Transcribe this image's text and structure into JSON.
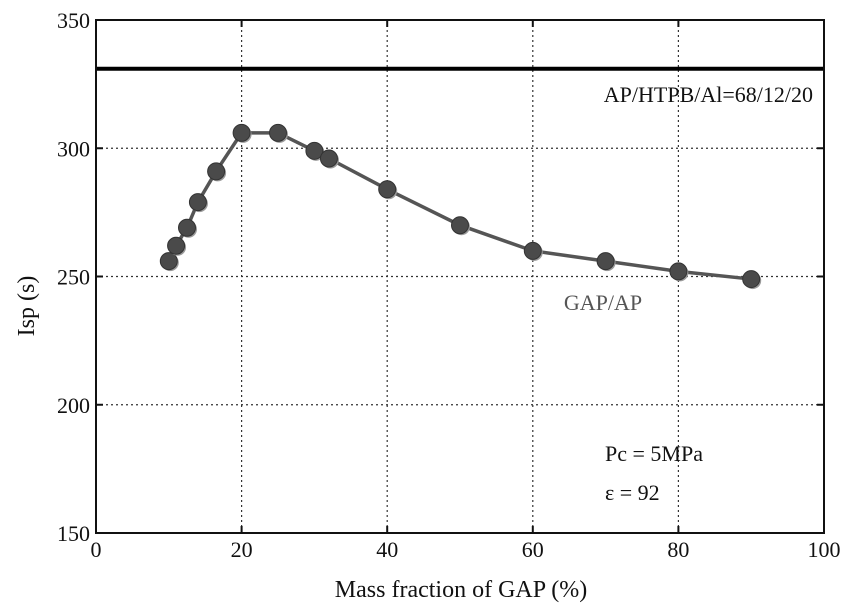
{
  "chart_data": {
    "type": "line",
    "title": "",
    "xlabel": "Mass fraction of GAP (%)",
    "ylabel": "Isp (s)",
    "xlim": [
      0,
      100
    ],
    "ylim": [
      150,
      350
    ],
    "x_ticks": [
      0,
      20,
      40,
      60,
      80,
      100
    ],
    "y_ticks": [
      150,
      200,
      250,
      300,
      350
    ],
    "x_tick_labels": [
      "0",
      "20",
      "40",
      "60",
      "80",
      "100"
    ],
    "y_tick_labels": [
      "150",
      "200",
      "250",
      "300",
      "350"
    ],
    "grid": true,
    "series": [
      {
        "name": "GAP/AP",
        "x": [
          10,
          11,
          12.5,
          14,
          16.5,
          20,
          25,
          30,
          32,
          40,
          50,
          60,
          70,
          80,
          90
        ],
        "y": [
          256,
          262,
          269,
          279,
          291,
          306,
          306,
          299,
          296,
          284,
          270,
          260,
          256,
          252,
          249
        ],
        "color": "#555555",
        "marker": "circle"
      }
    ],
    "reference_lines": [
      {
        "name": "AP/HTPB/Al=68/12/20",
        "y": 331,
        "color": "#000000"
      }
    ],
    "annotations": {
      "reference_label": "AP/HTPB/Al=68/12/20",
      "series_label": "GAP/AP",
      "pc_label": "Pc = 5MPa",
      "eps_label": "ε = 92"
    }
  }
}
